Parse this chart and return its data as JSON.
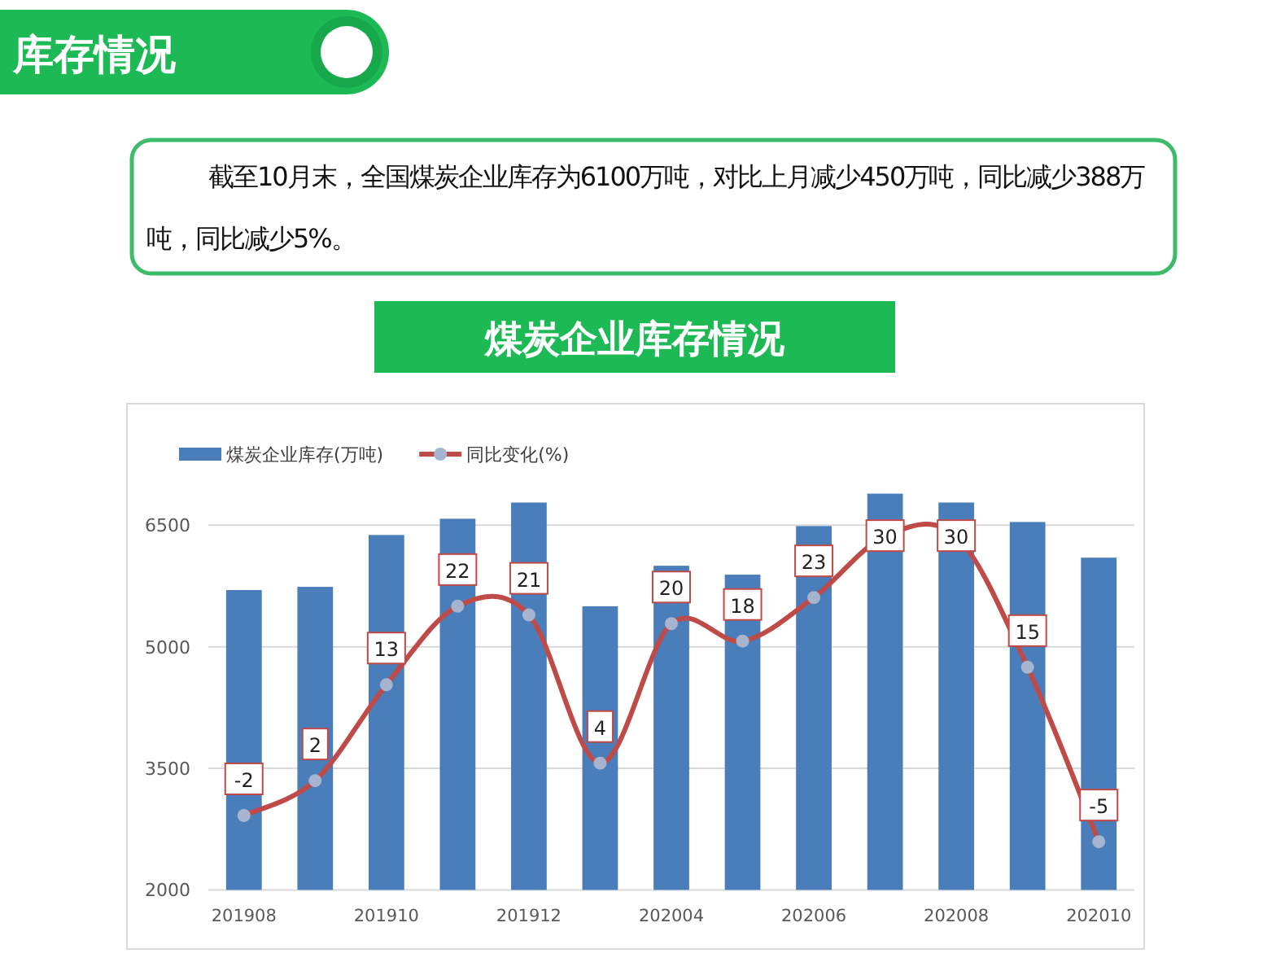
{
  "chart_data": {
    "type": "bar",
    "title": "煤炭企业库存情况",
    "annotations": [
      "库存情况",
      "截至10月末，全国煤炭企业库存为6100万吨，对比上月减少450万吨，同比减少388万吨，同比减少5%。"
    ],
    "categories": [
      "201908",
      null,
      "201910",
      null,
      "201912",
      null,
      "202004",
      null,
      "202006",
      null,
      "202008",
      null,
      "202010"
    ],
    "series": [
      {
        "name": "煤炭企业库存(万吨)",
        "color": "#4a7ebb",
        "values": [
          5700,
          5740,
          6380,
          6580,
          6780,
          5500,
          6000,
          5890,
          6490,
          6890,
          6780,
          6540,
          6100
        ]
      },
      {
        "name": "同比变化(%)",
        "type": "line",
        "axis": "y2",
        "color": "#be4b48",
        "marker": "circle",
        "values": [
          -2,
          2,
          13,
          22,
          21,
          4,
          20,
          18,
          23,
          30,
          30,
          15,
          -5
        ],
        "value_labels": [
          "-2",
          "2",
          "13",
          "22",
          "21",
          "4",
          "20",
          "18",
          "23",
          "30",
          "30",
          "15",
          "-5"
        ]
      }
    ],
    "ylim": [
      2000,
      8000
    ],
    "yticks": [
      2000,
      3500,
      5000,
      6500
    ],
    "grid": "y",
    "legend": "top left"
  }
}
